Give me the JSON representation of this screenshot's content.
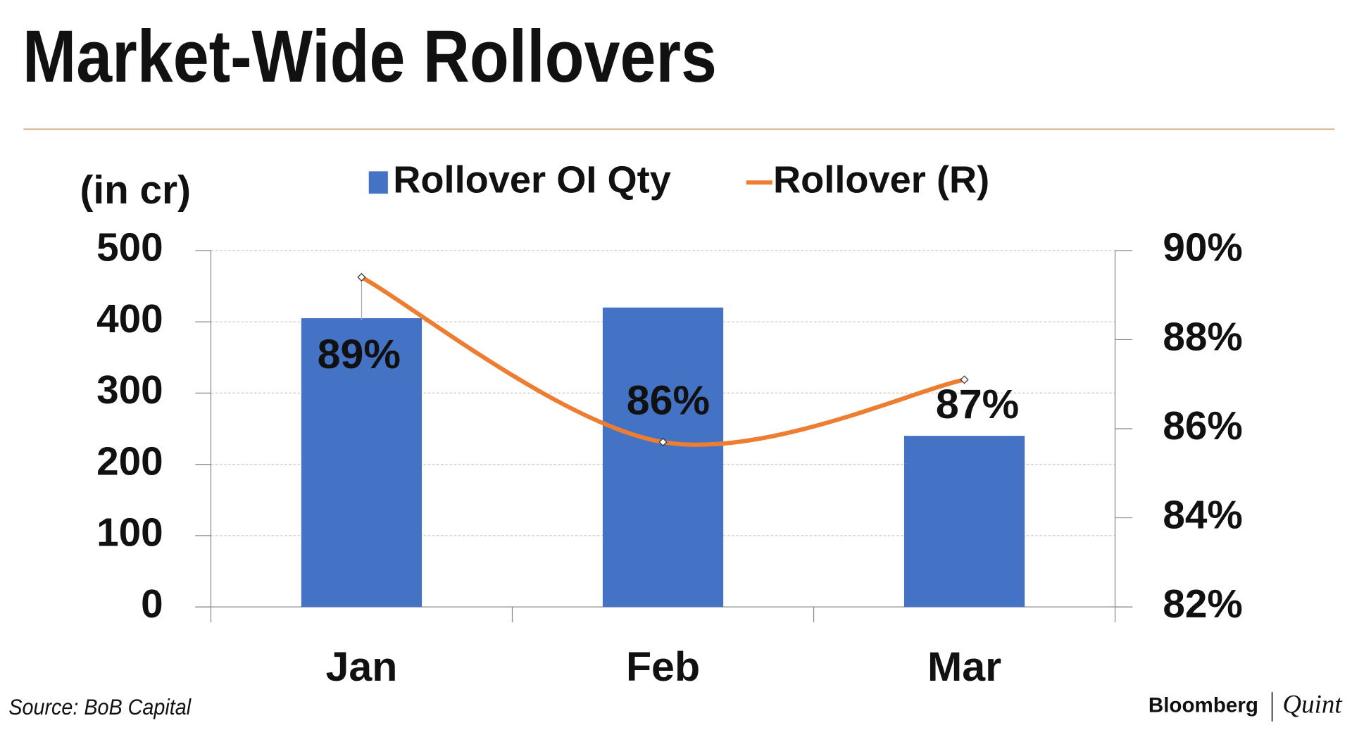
{
  "chart_data": {
    "type": "bar",
    "title": "Market-Wide Rollovers",
    "y_axis_label": "(in cr)",
    "categories": [
      "Jan",
      "Feb",
      "Mar"
    ],
    "series": [
      {
        "name": "Rollover OI Qty",
        "type": "bar",
        "color": "#4472c4",
        "values": [
          405,
          420,
          240
        ]
      },
      {
        "name": "Rollover (R)",
        "type": "line",
        "axis": "y2",
        "color": "#ed7d31",
        "values": [
          89.4,
          85.7,
          87.1
        ],
        "value_labels": [
          "89%",
          "86%",
          "87%"
        ]
      }
    ],
    "ylim": [
      0,
      500
    ],
    "yticks": [
      0,
      100,
      200,
      300,
      400,
      500
    ],
    "y2lim": [
      82,
      90
    ],
    "y2ticks": [
      {
        "value": 82,
        "label": "82%"
      },
      {
        "value": 84,
        "label": "84%"
      },
      {
        "value": 86,
        "label": "86%"
      },
      {
        "value": 88,
        "label": "88%"
      },
      {
        "value": 90,
        "label": "90%"
      }
    ],
    "grid": true,
    "legend": "top"
  },
  "source": "Source: BoB Capital",
  "brand": [
    "Bloomberg",
    "Quint"
  ]
}
